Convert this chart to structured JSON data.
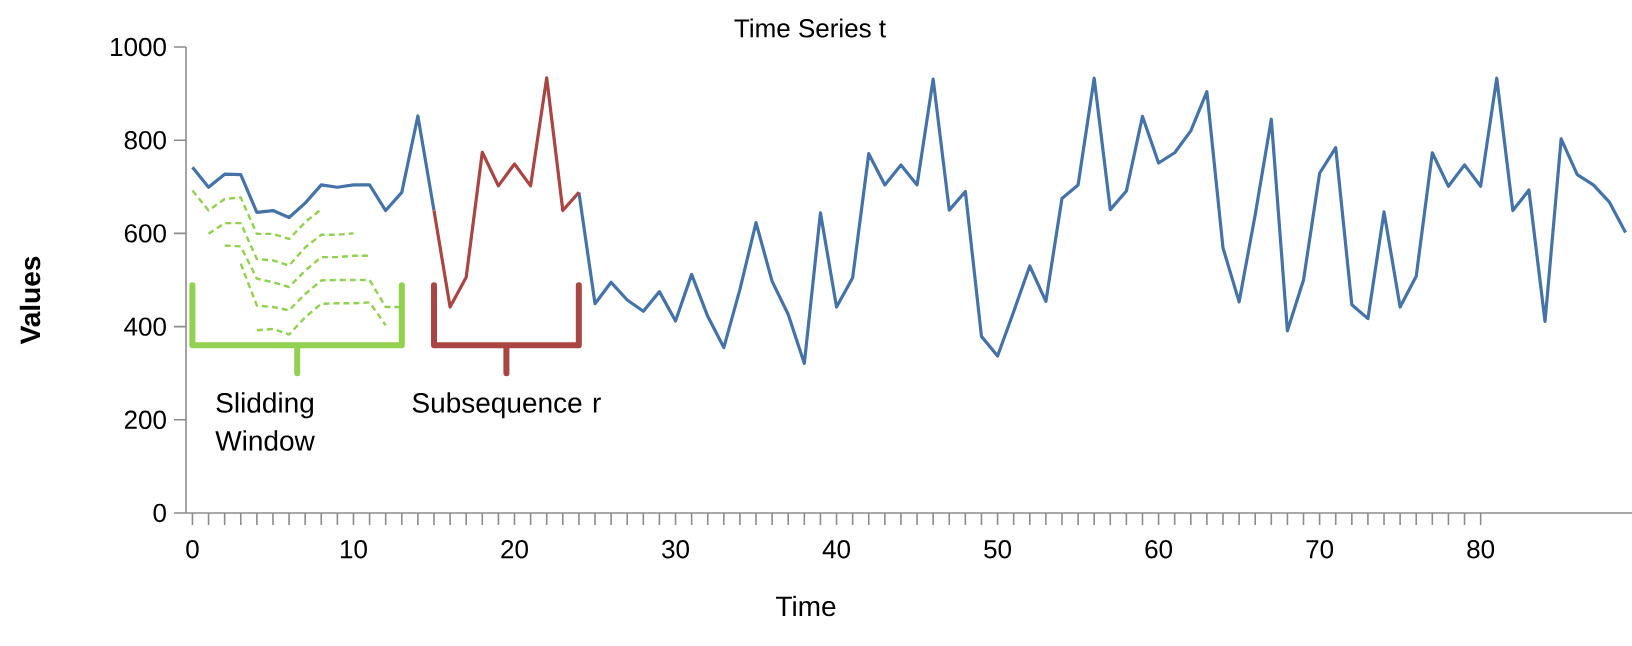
{
  "chart_data": {
    "type": "line",
    "title": "Time Series t",
    "xlabel": "Time",
    "ylabel": "Values",
    "xlim": [
      -0.4,
      89.4
    ],
    "ylim": [
      0,
      1000
    ],
    "xticks": [
      0,
      10,
      20,
      30,
      40,
      50,
      60,
      70,
      80
    ],
    "yticks": [
      0,
      200,
      400,
      600,
      800,
      1000
    ],
    "grid": false,
    "legend": false,
    "marker": "none",
    "series": [
      {
        "color": "#4573a7",
        "line_style": "solid",
        "x": [
          0,
          1,
          2,
          3,
          4,
          5,
          6,
          7,
          8,
          9,
          10,
          11,
          12,
          13,
          14,
          15,
          16,
          17,
          18,
          19,
          20,
          21,
          22,
          23,
          24,
          25,
          26,
          27,
          28,
          29,
          30,
          31,
          32,
          33,
          34,
          35,
          36,
          37,
          38,
          39,
          40,
          41,
          42,
          43,
          44,
          45,
          46,
          47,
          48,
          49,
          50,
          51,
          52,
          53,
          54,
          55,
          56,
          57,
          58,
          59,
          60,
          61,
          62,
          63,
          64,
          65,
          66,
          67,
          68,
          69,
          70,
          71,
          72,
          73,
          74,
          75,
          76,
          77,
          78,
          79,
          80,
          81,
          82,
          83,
          84,
          85,
          86,
          87,
          88,
          89
        ],
        "values": [
          742,
          699,
          727,
          726,
          645,
          649,
          634,
          665,
          704,
          699,
          704,
          704,
          649,
          688,
          852,
          649,
          null,
          null,
          null,
          null,
          null,
          null,
          null,
          null,
          688,
          449,
          495,
          457,
          433,
          475,
          412,
          512,
          422,
          355,
          480,
          623,
          497,
          426,
          321,
          644,
          442,
          505,
          771,
          704,
          747,
          704,
          931,
          650,
          690,
          379,
          337,
          432,
          530,
          454,
          675,
          704,
          933,
          651,
          691,
          851,
          751,
          773,
          820,
          904,
          569,
          453,
          640,
          845,
          391,
          500,
          729,
          784,
          447,
          417,
          646,
          442,
          508,
          773,
          701,
          747,
          701,
          933,
          649,
          693,
          411,
          803,
          726,
          704,
          667,
          602
        ]
      },
      {
        "color": "#a94543",
        "line_style": "solid",
        "x": [
          15,
          16,
          17,
          18,
          19,
          20,
          21,
          22,
          23,
          24
        ],
        "values": [
          649,
          442,
          506,
          774,
          702,
          749,
          702,
          934,
          649,
          688
        ]
      },
      {
        "color": "#92d050",
        "line_style": "dashed",
        "x": [
          0,
          1,
          2,
          3,
          4,
          5,
          6,
          7,
          8
        ],
        "values": [
          692,
          649,
          674,
          677,
          599,
          599,
          588,
          624,
          652
        ]
      },
      {
        "color": "#92d050",
        "line_style": "dashed",
        "x": [
          1,
          2,
          3,
          4,
          5,
          6,
          7,
          8,
          9,
          10
        ],
        "values": [
          599,
          622,
          622,
          545,
          542,
          531,
          570,
          597,
          597,
          600
        ]
      },
      {
        "color": "#92d050",
        "line_style": "dashed",
        "x": [
          2,
          3,
          4,
          5,
          6,
          7,
          8,
          9,
          10,
          11
        ],
        "values": [
          574,
          572,
          503,
          495,
          485,
          520,
          549,
          549,
          552,
          552
        ]
      },
      {
        "color": "#92d050",
        "line_style": "dashed",
        "x": [
          3,
          4,
          5,
          6,
          7,
          8,
          9,
          10,
          11,
          12,
          13
        ],
        "values": [
          535,
          445,
          442,
          435,
          470,
          499,
          500,
          500,
          500,
          442,
          442
        ]
      },
      {
        "color": "#92d050",
        "line_style": "dashed",
        "x": [
          4,
          5,
          6,
          7,
          8,
          9,
          10,
          11,
          12
        ],
        "values": [
          392,
          395,
          383,
          420,
          449,
          450,
          450,
          452,
          403
        ]
      }
    ],
    "annotations": [
      "Slidding Window",
      "Subsequence r"
    ]
  }
}
